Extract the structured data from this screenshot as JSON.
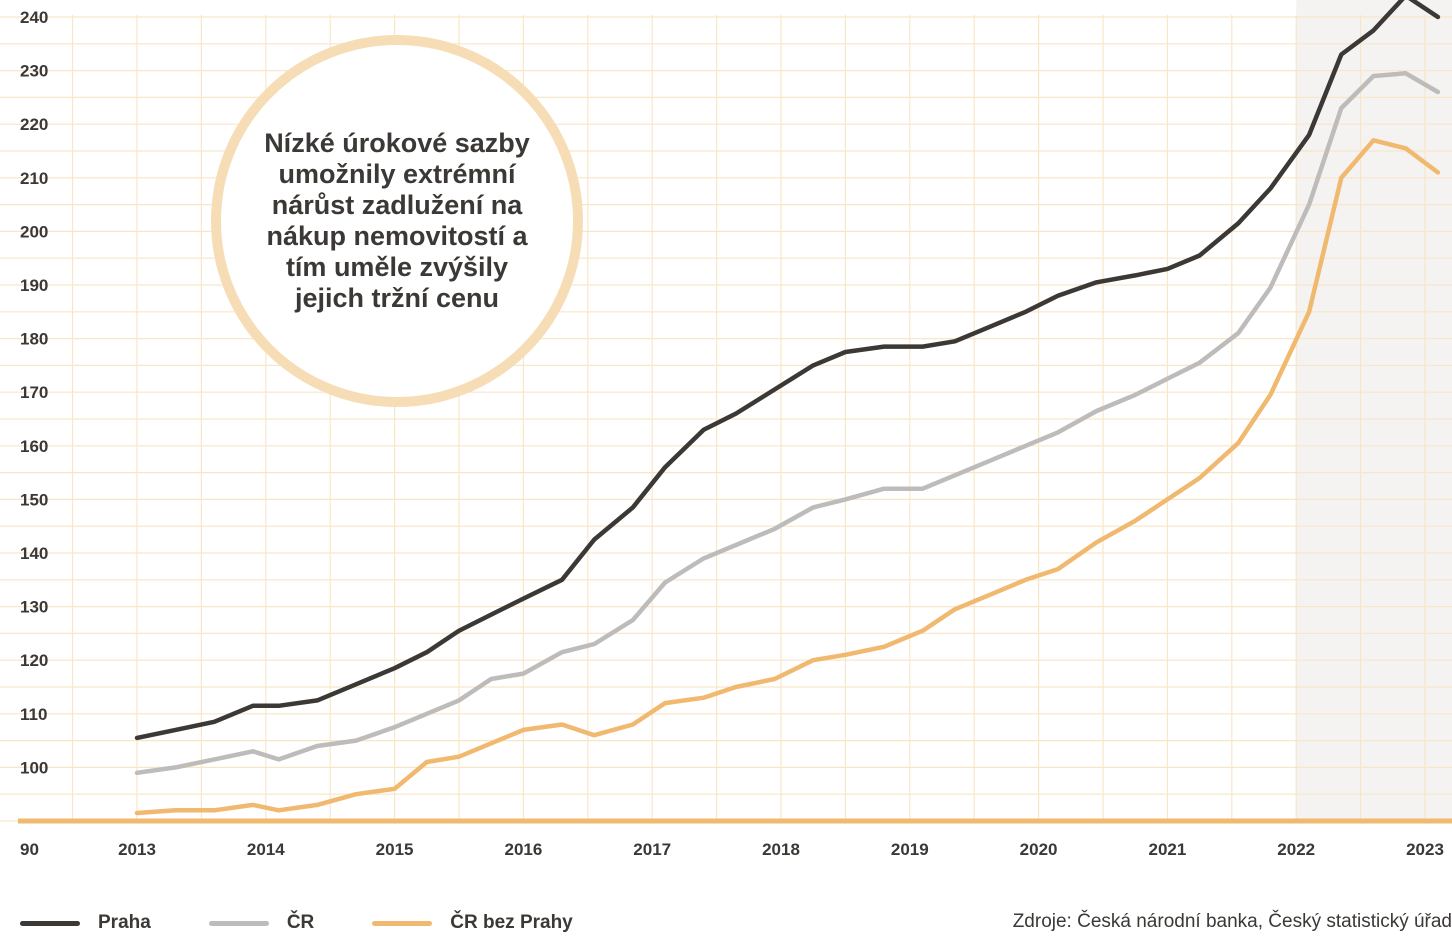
{
  "chart_data": {
    "type": "line",
    "title": "",
    "xlabel": "",
    "ylabel": "",
    "x_ticks": [
      "2013",
      "2014",
      "2015",
      "2016",
      "2017",
      "2018",
      "2019",
      "2020",
      "2021",
      "2022",
      "2023"
    ],
    "y_ticks": [
      "90",
      "100",
      "110",
      "120",
      "130",
      "140",
      "150",
      "160",
      "170",
      "180",
      "190",
      "200",
      "210",
      "220",
      "230",
      "240"
    ],
    "ylim": [
      90,
      245
    ],
    "xlim": [
      2012.0,
      2023.2
    ],
    "grid": true,
    "legend_position": "bottom-left",
    "x": [
      2013.0,
      2013.3,
      2013.6,
      2013.9,
      2014.1,
      2014.4,
      2014.7,
      2015.0,
      2015.25,
      2015.5,
      2015.75,
      2016.0,
      2016.3,
      2016.55,
      2016.85,
      2017.1,
      2017.4,
      2017.65,
      2017.95,
      2018.25,
      2018.5,
      2018.8,
      2019.1,
      2019.35,
      2019.6,
      2019.9,
      2020.15,
      2020.45,
      2020.75,
      2021.0,
      2021.25,
      2021.55,
      2021.8,
      2022.1,
      2022.35,
      2022.6,
      2022.85,
      2023.1
    ],
    "series": [
      {
        "name": "Praha",
        "color": "#3b3835",
        "values": [
          105.5,
          107,
          108.5,
          111.5,
          111.5,
          112.5,
          115.5,
          118.5,
          121.5,
          125.5,
          128.5,
          131.5,
          135,
          142.5,
          148.5,
          156,
          163,
          166,
          170.5,
          175,
          177.5,
          178.5,
          178.5,
          179.5,
          182,
          185,
          188,
          190.5,
          191.8,
          193,
          195.5,
          201.5,
          208,
          218,
          233,
          237.5,
          244,
          240
        ]
      },
      {
        "name": "ČR",
        "color": "#bdbcbb",
        "values": [
          99,
          100,
          101.5,
          103,
          101.5,
          104,
          105,
          107.5,
          110,
          112.5,
          116.5,
          117.5,
          121.5,
          123,
          127.5,
          134.5,
          139,
          141.5,
          144.5,
          148.5,
          150,
          152,
          152,
          154.5,
          157,
          160,
          162.5,
          166.5,
          169.5,
          172.5,
          175.5,
          181,
          189.5,
          205,
          223,
          229,
          229.5,
          226
        ]
      },
      {
        "name": "ČR bez Prahy",
        "color": "#f0b96f",
        "values": [
          91.5,
          92,
          92,
          93,
          92,
          93,
          95,
          96,
          101,
          102,
          104.5,
          107,
          108,
          106,
          108,
          112,
          113,
          115,
          116.5,
          120,
          121,
          122.5,
          125.5,
          129.5,
          132,
          135,
          137,
          142,
          146,
          150,
          154,
          160.5,
          169.5,
          185,
          210,
          217,
          215.5,
          211
        ]
      }
    ],
    "annotation": "Nízké úrokové sazby umožnily extrémní nárůst zadlužení na nákup nemovitostí a tím uměle zvýšily jejich tržní cenu",
    "source": "Zdroje: Česká národní banka, Český statistický úřad",
    "colors": {
      "grid": "#f8e6c9",
      "baseline": "#f0b96f",
      "text": "#3b3835",
      "shade": "#f4f3f2",
      "annotation_border": "#f7ddb6"
    }
  }
}
